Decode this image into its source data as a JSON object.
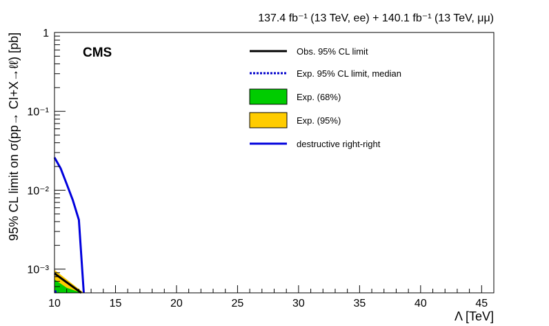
{
  "chart_data": {
    "type": "line",
    "title": "",
    "lumi_label": "137.4 fb⁻¹ (13 TeV, ee) + 140.1 fb⁻¹ (13 TeV, μμ)",
    "experiment_label": "CMS",
    "xlabel": "Λ [TeV]",
    "ylabel": "95% CL limit on σ(pp→ CI+X→ℓℓ) [pb]",
    "xlim": [
      10,
      46
    ],
    "ylim": [
      0.0005,
      1
    ],
    "y_scale": "log",
    "x_ticks": [
      10,
      15,
      20,
      25,
      30,
      35,
      40,
      45
    ],
    "x_tick_labels": [
      "10",
      "15",
      "20",
      "25",
      "30",
      "35",
      "40",
      "45"
    ],
    "y_ticks": [
      0.001,
      0.01,
      0.1,
      1
    ],
    "y_tick_labels": [
      "10⁻³",
      "10⁻²",
      "10⁻¹",
      "1"
    ],
    "grid": false,
    "legend_position": "top-right",
    "legend": [
      {
        "key": "obs",
        "label": "Obs. 95% CL limit"
      },
      {
        "key": "exp",
        "label": "Exp. 95% CL limit, median"
      },
      {
        "key": "band68",
        "label": "Exp. (68%)"
      },
      {
        "key": "band95",
        "label": "Exp. (95%)"
      },
      {
        "key": "signal",
        "label": "destructive right-right"
      }
    ],
    "series": [
      {
        "key": "obs",
        "name": "Obs. 95% CL limit",
        "color": "#000000",
        "x": [
          10,
          11,
          12.2
        ],
        "y": [
          0.00088,
          0.00068,
          0.0005
        ]
      },
      {
        "key": "exp",
        "name": "Exp. 95% CL limit, median",
        "color": "#0000cc",
        "dashed": true,
        "x": [
          10,
          10.3
        ],
        "y": [
          0.00052,
          0.00052
        ]
      },
      {
        "key": "signal",
        "name": "destructive right-right",
        "color": "#0000dd",
        "x": [
          10,
          10.5,
          11,
          11.5,
          12,
          12.4
        ],
        "y": [
          0.026,
          0.019,
          0.012,
          0.0075,
          0.0042,
          0.0005
        ]
      }
    ],
    "bands": [
      {
        "key": "band95",
        "name": "Exp. (95%)",
        "color": "#ffcc00",
        "x": [
          10,
          11,
          12.4
        ],
        "lower": [
          0.0005,
          0.0005,
          0.0005
        ],
        "upper": [
          0.00098,
          0.00074,
          0.0005
        ]
      },
      {
        "key": "band68",
        "name": "Exp. (68%)",
        "color": "#00cc00",
        "x": [
          10,
          11,
          12.2
        ],
        "lower": [
          0.0005,
          0.0005,
          0.0005
        ],
        "upper": [
          0.00074,
          0.00058,
          0.0005
        ]
      }
    ]
  }
}
